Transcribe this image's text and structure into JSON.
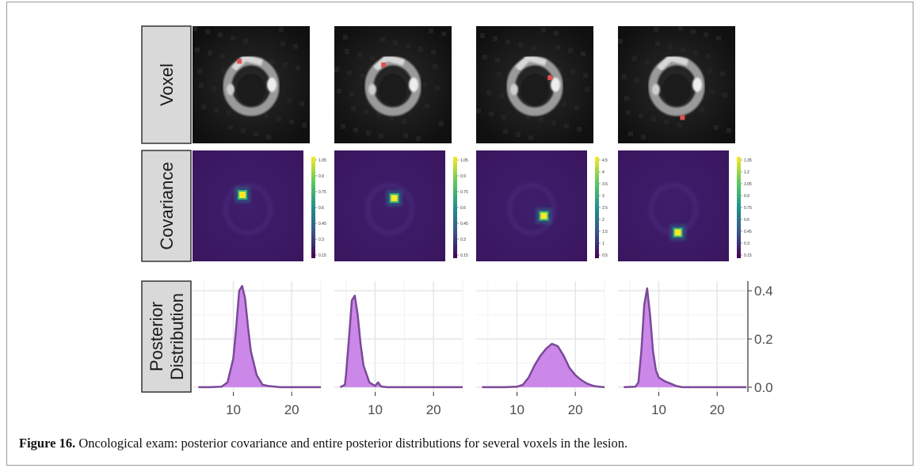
{
  "figure": {
    "caption_label": "Figure 16.",
    "caption_text": " Oncological exam: posterior covariance and entire posterior distributions for several voxels in the lesion."
  },
  "rows": {
    "voxel": {
      "label": "Voxel"
    },
    "covariance": {
      "label": "Covariance"
    },
    "posterior": {
      "label_line1": "Posterior",
      "label_line2": "Distribution"
    }
  },
  "voxel_marker_color": "#e05050",
  "posterior_fill_color": "#cc88e8",
  "posterior_line_color": "#7a4a9a",
  "chart_data": [
    {
      "type": "heatmap",
      "row": "covariance",
      "panels": [
        {
          "colorbar_ticks": [
            "1.05",
            "0.9",
            "0.75",
            "0.6",
            "0.45",
            "0.3",
            "0.15"
          ]
        },
        {
          "colorbar_ticks": [
            "1.05",
            "0.9",
            "0.75",
            "0.6",
            "0.45",
            "0.3",
            "0.15"
          ]
        },
        {
          "colorbar_ticks": [
            "4.5",
            "4",
            "3.5",
            "3",
            "2.5",
            "2",
            "1.5",
            "1",
            "0.5"
          ]
        },
        {
          "colorbar_ticks": [
            "1.35",
            "1.2",
            "1.05",
            "0.9",
            "0.75",
            "0.6",
            "0.45",
            "0.3",
            "0.15"
          ]
        }
      ]
    },
    {
      "type": "area",
      "row": "posterior",
      "xlim": [
        3,
        25
      ],
      "ylim": [
        -0.02,
        0.44
      ],
      "x_ticks": [
        10,
        20
      ],
      "y_ticks": [
        0.0,
        0.2,
        0.4
      ],
      "x_tick_labels": [
        "10",
        "20"
      ],
      "y_tick_labels": [
        "0.0",
        "0.2",
        "0.4"
      ],
      "grid": true,
      "panels": [
        {
          "x": [
            4,
            6,
            8,
            9,
            10,
            10.5,
            11,
            11.5,
            12,
            12.5,
            13,
            14,
            15,
            16,
            18,
            25
          ],
          "y": [
            0,
            0,
            0.002,
            0.02,
            0.12,
            0.25,
            0.4,
            0.42,
            0.37,
            0.25,
            0.15,
            0.05,
            0.01,
            0.005,
            0,
            0
          ]
        },
        {
          "x": [
            4,
            4.8,
            5,
            5.5,
            6,
            6.5,
            7,
            7.5,
            8,
            9,
            10,
            10.5,
            11,
            12,
            25
          ],
          "y": [
            0,
            0.01,
            0.05,
            0.2,
            0.36,
            0.38,
            0.3,
            0.18,
            0.09,
            0.02,
            0.005,
            0.02,
            0.003,
            0,
            0
          ]
        },
        {
          "x": [
            4,
            8,
            10,
            11,
            12,
            13,
            14,
            15,
            16,
            17,
            18,
            19,
            20,
            21,
            22,
            23,
            24,
            25
          ],
          "y": [
            0,
            0,
            0.002,
            0.01,
            0.04,
            0.09,
            0.13,
            0.16,
            0.18,
            0.17,
            0.13,
            0.08,
            0.05,
            0.03,
            0.015,
            0.006,
            0.002,
            0
          ]
        },
        {
          "x": [
            4,
            6,
            6.5,
            7,
            7.5,
            8,
            8.5,
            9,
            9.5,
            10,
            11,
            12,
            13,
            14,
            25
          ],
          "y": [
            0,
            0.002,
            0.02,
            0.15,
            0.34,
            0.41,
            0.3,
            0.15,
            0.07,
            0.04,
            0.025,
            0.015,
            0.005,
            0,
            0
          ]
        }
      ]
    }
  ]
}
